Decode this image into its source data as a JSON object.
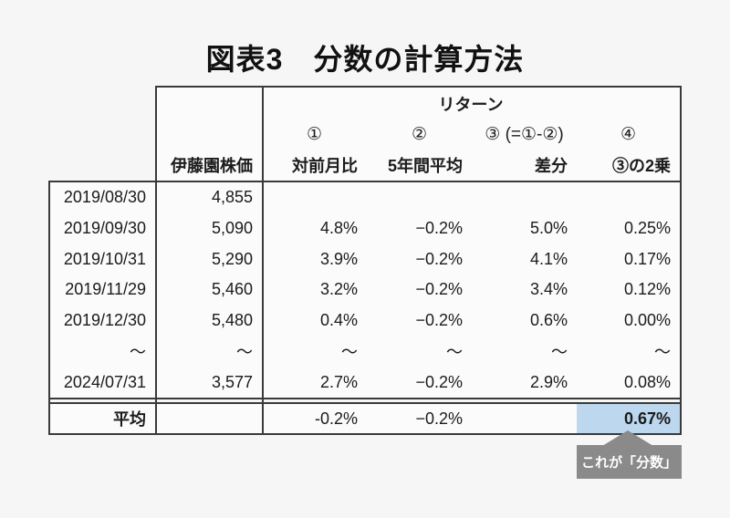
{
  "title": "図表3　分数の計算方法",
  "table": {
    "header": {
      "returns_group_label": "リターン",
      "price_col_label": "伊藤園株価",
      "circled": [
        "①",
        "②",
        "③ (=①-②)",
        "④"
      ],
      "col_labels": [
        "対前月比",
        "5年間平均",
        "差分",
        "③の2乗"
      ]
    },
    "rows": [
      [
        "2019/08/30",
        "4,855",
        "",
        "",
        "",
        ""
      ],
      [
        "2019/09/30",
        "5,090",
        "4.8%",
        "−0.2%",
        "5.0%",
        "0.25%"
      ],
      [
        "2019/10/31",
        "5,290",
        "3.9%",
        "−0.2%",
        "4.1%",
        "0.17%"
      ],
      [
        "2019/11/29",
        "5,460",
        "3.2%",
        "−0.2%",
        "3.4%",
        "0.12%"
      ],
      [
        "2019/12/30",
        "5,480",
        "0.4%",
        "−0.2%",
        "0.6%",
        "0.00%"
      ],
      [
        "～",
        "～",
        "～",
        "～",
        "～",
        "～"
      ],
      [
        "2024/07/31",
        "3,577",
        "2.7%",
        "−0.2%",
        "2.9%",
        "0.08%"
      ]
    ],
    "average_row": [
      "平均",
      "",
      "-0.2%",
      "−0.2%",
      "",
      "0.67%"
    ]
  },
  "callout": {
    "label": "これが「分数」"
  },
  "colors": {
    "background": "#f6f6f6",
    "highlight_cell": "#bdd7ee",
    "callout_gray": "#8a8a8a",
    "border": "#3a3a3a"
  },
  "chart_data": {
    "type": "table",
    "title": "図表3　分数の計算方法",
    "column_group": {
      "label": "リターン",
      "over": [
        "対前月比",
        "5年間平均",
        "差分",
        "③の2乗"
      ]
    },
    "columns": [
      "",
      "伊藤園株価",
      "① 対前月比",
      "② 5年間平均",
      "③ (=①-②) 差分",
      "④ ③の2乗"
    ],
    "rows": [
      [
        "2019/08/30",
        "4,855",
        "",
        "",
        "",
        ""
      ],
      [
        "2019/09/30",
        "5,090",
        "4.8%",
        "−0.2%",
        "5.0%",
        "0.25%"
      ],
      [
        "2019/10/31",
        "5,290",
        "3.9%",
        "−0.2%",
        "4.1%",
        "0.17%"
      ],
      [
        "2019/11/29",
        "5,460",
        "3.2%",
        "−0.2%",
        "3.4%",
        "0.12%"
      ],
      [
        "2019/12/30",
        "5,480",
        "0.4%",
        "−0.2%",
        "0.6%",
        "0.00%"
      ],
      [
        "～",
        "～",
        "～",
        "～",
        "～",
        "～"
      ],
      [
        "2024/07/31",
        "3,577",
        "2.7%",
        "−0.2%",
        "2.9%",
        "0.08%"
      ],
      [
        "平均",
        "",
        "-0.2%",
        "−0.2%",
        "",
        "0.67%"
      ]
    ],
    "highlighted_value": "0.67%",
    "annotation": "これが「分数」",
    "legend_position": "none",
    "grid": "partial-borders"
  }
}
